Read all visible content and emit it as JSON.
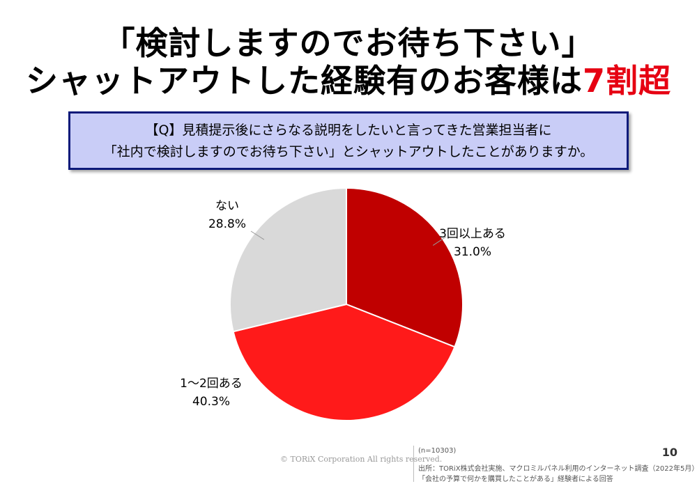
{
  "title": {
    "line1": "「検討しますのでお待ち下さい」",
    "line2_prefix": "シャットアウトした経験有のお客様は",
    "line2_accent": "7割超"
  },
  "question": {
    "line1": "【Q】見積提示後にさらなる説明をしたいと言ってきた営業担当者に",
    "line2": "「社内で検討しますのでお待ち下さい」とシャットアウトしたことがありますか。"
  },
  "chart_data": {
    "type": "pie",
    "slices": [
      {
        "label": "3回以上ある",
        "value": 31.0,
        "value_label": "31.0%",
        "color": "#c00000"
      },
      {
        "label": "1～2回ある",
        "value": 40.3,
        "value_label": "40.3%",
        "color": "#ff1a1a"
      },
      {
        "label": "ない",
        "value": 28.8,
        "value_label": "28.8%",
        "color": "#d9d9d9"
      }
    ]
  },
  "footer": {
    "copyright": "© TORiX Corporation All rights reserved.",
    "sample": "(n=10303)",
    "source_line1": "出所：TORiX株式会社実施、マクロミルパネル利用のインターネット調査（2022年5月）",
    "source_line2": "「会社の予算で何かを購買したことがある」経験者による回答",
    "page_number": "10"
  }
}
